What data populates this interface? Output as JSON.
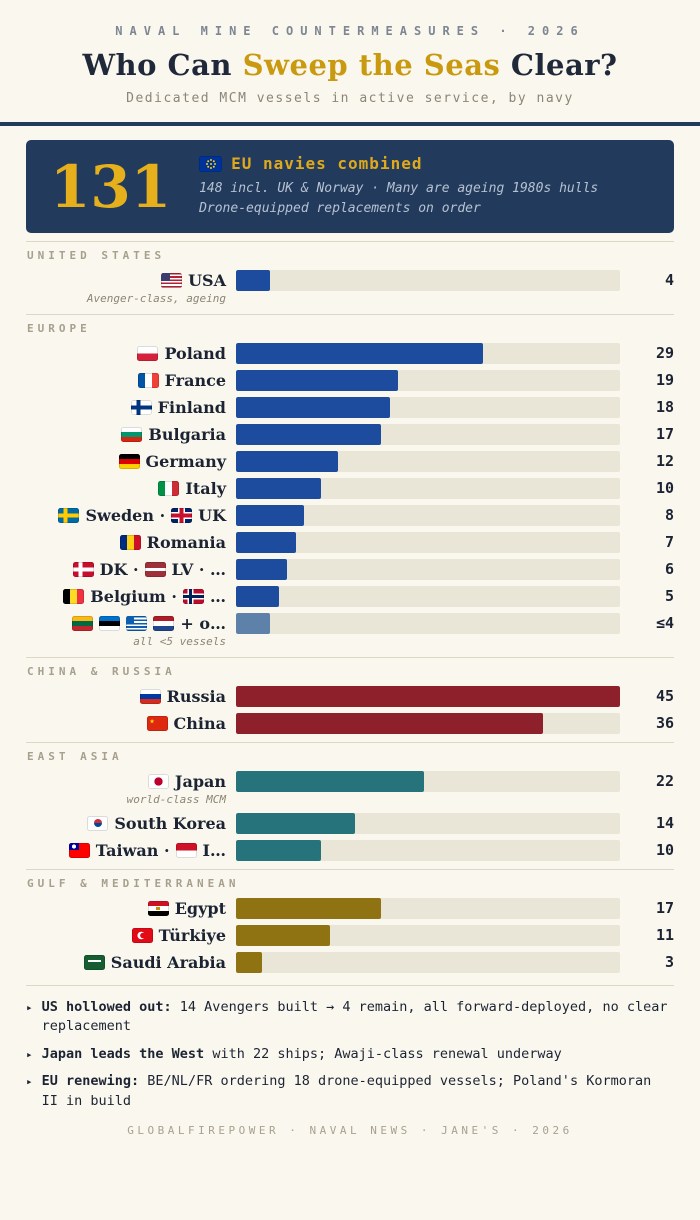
{
  "header": {
    "kicker": "NAVAL MINE COUNTERMEASURES · 2026",
    "title_pre": "Who Can ",
    "title_accent": "Sweep the Seas",
    "title_post": " Clear?",
    "subtitle": "Dedicated MCM vessels in active service, by navy"
  },
  "callout": {
    "big_number": "131",
    "heading": "EU navies combined",
    "line1": "148 incl. UK & Norway · Many are ageing 1980s hulls",
    "line2": "Drone-equipped replacements on order"
  },
  "chart_data": {
    "type": "bar",
    "orientation": "horizontal",
    "title": "Who Can Sweep the Seas Clear?",
    "unit": "vessels",
    "max_value": 45,
    "grid": false,
    "sections": [
      {
        "label": "UNITED STATES",
        "color": "#1d4c9f",
        "rows": [
          {
            "id": "usa",
            "label_parts": [
              {
                "flag": "us"
              },
              {
                "text": "USA"
              }
            ],
            "note": "Avenger-class, ageing",
            "value": 4,
            "display": "4"
          }
        ]
      },
      {
        "label": "EUROPE",
        "color": "#1d4c9f",
        "muted_color": "#5d81a8",
        "rows": [
          {
            "id": "poland",
            "label_parts": [
              {
                "flag": "pl"
              },
              {
                "text": "Poland"
              }
            ],
            "value": 29,
            "display": "29"
          },
          {
            "id": "france",
            "label_parts": [
              {
                "flag": "fr"
              },
              {
                "text": "France"
              }
            ],
            "value": 19,
            "display": "19"
          },
          {
            "id": "finland",
            "label_parts": [
              {
                "flag": "fi"
              },
              {
                "text": "Finland"
              }
            ],
            "value": 18,
            "display": "18"
          },
          {
            "id": "bulgaria",
            "label_parts": [
              {
                "flag": "bg"
              },
              {
                "text": "Bulgaria"
              }
            ],
            "value": 17,
            "display": "17"
          },
          {
            "id": "germany",
            "label_parts": [
              {
                "flag": "de"
              },
              {
                "text": "Germany"
              }
            ],
            "value": 12,
            "display": "12"
          },
          {
            "id": "italy",
            "label_parts": [
              {
                "flag": "it"
              },
              {
                "text": "Italy"
              }
            ],
            "value": 10,
            "display": "10"
          },
          {
            "id": "sweden-uk",
            "label_parts": [
              {
                "flag": "se"
              },
              {
                "text": "Sweden ·"
              },
              {
                "flag": "gb"
              },
              {
                "text": "UK"
              }
            ],
            "value": 8,
            "display": "8"
          },
          {
            "id": "romania",
            "label_parts": [
              {
                "flag": "ro"
              },
              {
                "text": "Romania"
              }
            ],
            "value": 7,
            "display": "7"
          },
          {
            "id": "dk-lv",
            "label_parts": [
              {
                "flag": "dk"
              },
              {
                "text": "DK ·"
              },
              {
                "flag": "lv"
              },
              {
                "text": "LV · …"
              }
            ],
            "value": 6,
            "display": "6"
          },
          {
            "id": "belgium-no",
            "label_parts": [
              {
                "flag": "be"
              },
              {
                "text": "Belgium ·"
              },
              {
                "flag": "no"
              },
              {
                "text": "…"
              }
            ],
            "value": 5,
            "display": "5"
          },
          {
            "id": "other-eu",
            "label_parts": [
              {
                "flag": "lt"
              },
              {
                "flag": "ee"
              },
              {
                "flag": "gr"
              },
              {
                "flag": "nl"
              },
              {
                "text": "+ o…"
              }
            ],
            "note": "all <5 vessels",
            "value": 4,
            "display": "≤4",
            "muted": true
          }
        ]
      },
      {
        "label": "CHINA & RUSSIA",
        "color": "#8e202c",
        "rows": [
          {
            "id": "russia",
            "label_parts": [
              {
                "flag": "ru"
              },
              {
                "text": "Russia"
              }
            ],
            "value": 45,
            "display": "45"
          },
          {
            "id": "china",
            "label_parts": [
              {
                "flag": "cn"
              },
              {
                "text": "China"
              }
            ],
            "value": 36,
            "display": "36"
          }
        ]
      },
      {
        "label": "EAST ASIA",
        "color": "#27737b",
        "rows": [
          {
            "id": "japan",
            "label_parts": [
              {
                "flag": "jp"
              },
              {
                "text": "Japan"
              }
            ],
            "note": "world-class MCM",
            "value": 22,
            "display": "22"
          },
          {
            "id": "south-korea",
            "label_parts": [
              {
                "flag": "kr"
              },
              {
                "text": "South Korea"
              }
            ],
            "value": 14,
            "display": "14"
          },
          {
            "id": "taiwan-id",
            "label_parts": [
              {
                "flag": "tw"
              },
              {
                "text": "Taiwan ·"
              },
              {
                "flag": "id"
              },
              {
                "text": "I…"
              }
            ],
            "value": 10,
            "display": "10"
          }
        ]
      },
      {
        "label": "GULF & MEDITERRANEAN",
        "color": "#8f7313",
        "rows": [
          {
            "id": "egypt",
            "label_parts": [
              {
                "flag": "eg"
              },
              {
                "text": "Egypt"
              }
            ],
            "value": 17,
            "display": "17"
          },
          {
            "id": "turkiye",
            "label_parts": [
              {
                "flag": "tr"
              },
              {
                "text": "Türkiye"
              }
            ],
            "value": 11,
            "display": "11"
          },
          {
            "id": "saudi-arabia",
            "label_parts": [
              {
                "flag": "sa"
              },
              {
                "text": "Saudi Arabia"
              }
            ],
            "value": 3,
            "display": "3"
          }
        ]
      }
    ]
  },
  "footnote_bullet": "▸",
  "footnotes": [
    {
      "bold": "US hollowed out:",
      "rest": " 14 Avengers built → 4 remain, all forward-deployed, no clear replacement"
    },
    {
      "bold": "Japan leads the West",
      "rest": " with 22 ships; Awaji-class renewal underway"
    },
    {
      "bold": "EU renewing:",
      "rest": " BE/NL/FR ordering 18 drone-equipped vessels; Poland's Kormoran II in build"
    }
  ],
  "footer": "GLOBALFIREPOWER · NAVAL NEWS · JANE'S · 2026"
}
